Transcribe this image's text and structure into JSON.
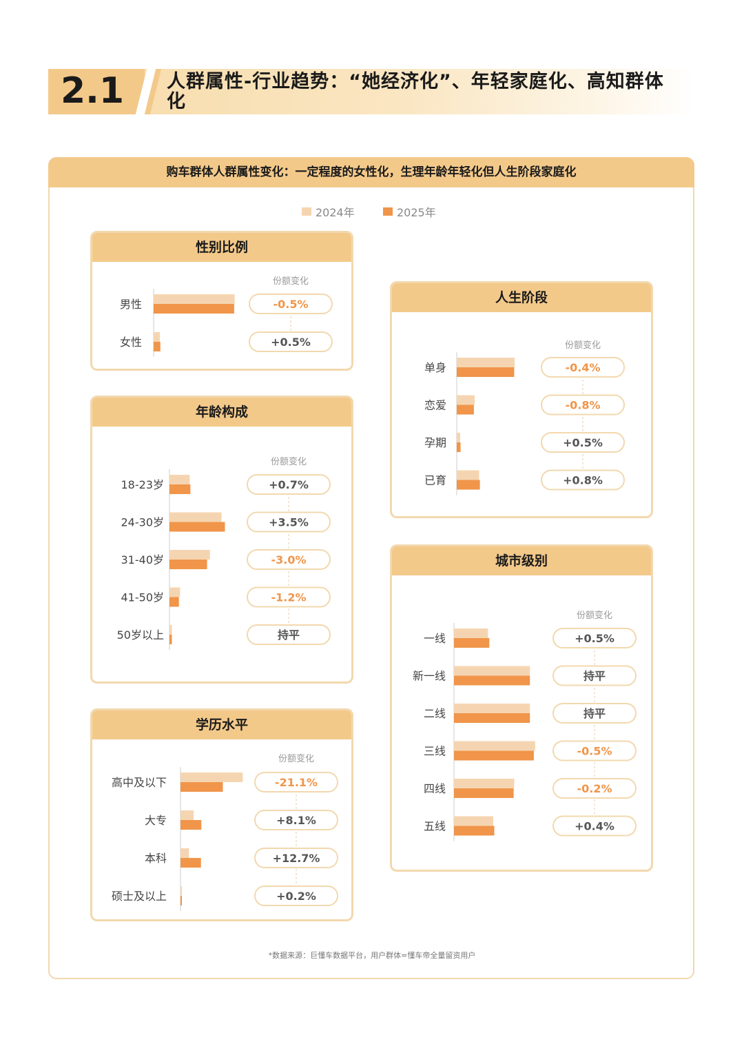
{
  "section_number": "2.1",
  "section_title": "人群属性-行业趋势：“她经济化”、年轻家庭化、高知群体化",
  "subtitle": "购车群体人群属性变化：一定程度的女性化，生理年龄年轻化但人生阶段家庭化",
  "legend": {
    "series_2024": "2024年",
    "series_2025": "2025年"
  },
  "change_header": "份额变化",
  "footnote": "*数据来源：巨懂车数据平台，用户群体=懂车帝全量留资用户",
  "colors": {
    "series_2024": "#f5d5b1",
    "series_2025": "#f0954a",
    "pill_border": "#f2d8ae",
    "positive": "#555555",
    "negative": "#f0954a"
  },
  "chart_data": [
    {
      "type": "bar",
      "title": "性别比例",
      "categories": [
        "男性",
        "女性"
      ],
      "series": [
        {
          "name": "2024年",
          "values": [
            84.0,
            6.5
          ]
        },
        {
          "name": "2025年",
          "values": [
            83.5,
            7.0
          ]
        }
      ],
      "changes": [
        "-0.5%",
        "+0.5%"
      ]
    },
    {
      "type": "bar",
      "title": "年龄构成",
      "categories": [
        "18-23岁",
        "24-30岁",
        "31-40岁",
        "41-50岁",
        "50岁以上"
      ],
      "series": [
        {
          "name": "2024年",
          "values": [
            21.0,
            54.0,
            42.0,
            11.0,
            2.5
          ]
        },
        {
          "name": "2025年",
          "values": [
            21.7,
            57.5,
            39.0,
            9.8,
            2.5
          ]
        }
      ],
      "changes": [
        "+0.7%",
        "+3.5%",
        "-3.0%",
        "-1.2%",
        "持平"
      ]
    },
    {
      "type": "bar",
      "title": "学历水平",
      "categories": [
        "高中及以下",
        "大专",
        "本科",
        "硕士及以上"
      ],
      "series": [
        {
          "name": "2024年",
          "values": [
            66.0,
            14.0,
            9.0,
            0.6
          ]
        },
        {
          "name": "2025年",
          "values": [
            44.9,
            22.1,
            21.7,
            0.8
          ]
        }
      ],
      "changes": [
        "-21.1%",
        "+8.1%",
        "+12.7%",
        "+0.2%"
      ]
    },
    {
      "type": "bar",
      "title": "人生阶段",
      "categories": [
        "单身",
        "恋爱",
        "孕期",
        "已育"
      ],
      "series": [
        {
          "name": "2024年",
          "values": [
            60.0,
            18.6,
            3.5,
            23.2
          ]
        },
        {
          "name": "2025年",
          "values": [
            59.6,
            17.8,
            4.0,
            24.0
          ]
        }
      ],
      "changes": [
        "-0.4%",
        "-0.8%",
        "+0.5%",
        "+0.8%"
      ]
    },
    {
      "type": "bar",
      "title": "城市级别",
      "categories": [
        "一线",
        "新一线",
        "二线",
        "三线",
        "四线",
        "五线"
      ],
      "series": [
        {
          "name": "2024年",
          "values": [
            13.0,
            29.0,
            29.0,
            31.0,
            23.0,
            15.0
          ]
        },
        {
          "name": "2025年",
          "values": [
            13.5,
            29.0,
            29.0,
            30.5,
            22.8,
            15.4
          ]
        }
      ],
      "changes": [
        "+0.5%",
        "持平",
        "持平",
        "-0.5%",
        "-0.2%",
        "+0.4%"
      ]
    }
  ]
}
